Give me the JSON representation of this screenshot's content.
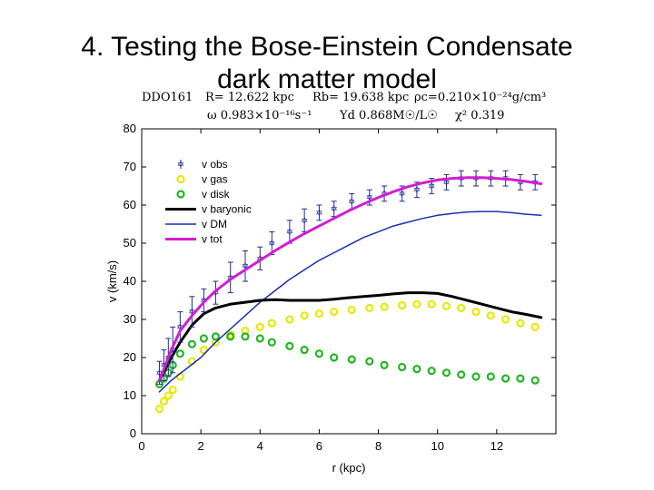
{
  "slide": {
    "title_line1": "4. Testing the Bose-Einstein Condensate",
    "title_line2": "dark matter model"
  },
  "params": {
    "galaxy": "DDO161",
    "R": "R= 12.622 kpc",
    "Rb": "Rb= 19.638 kpc",
    "rho": "ρc=0.210×10⁻²⁴g/cm³",
    "omega": "ω  0.983×10⁻¹⁶s⁻¹",
    "upsilon": "Υd  0.868M☉/L☉",
    "chi2": "χ²  0.319"
  },
  "colors": {
    "obs": "#1f2a9c",
    "gas": "#e8e800",
    "disk": "#22b522",
    "baryonic": "#000000",
    "dm": "#1a2fb0",
    "tot": "#d21ed2"
  },
  "chart_data": {
    "type": "scatter",
    "xlabel": "r (kpc)",
    "ylabel": "v (km/s)",
    "xlim": [
      0,
      14
    ],
    "ylim": [
      0,
      80
    ],
    "xticks": [
      0,
      2,
      4,
      6,
      8,
      10,
      12
    ],
    "yticks": [
      0,
      10,
      20,
      30,
      40,
      50,
      60,
      70,
      80
    ],
    "legend_position": "top-left",
    "legend": [
      "v obs",
      "v gas",
      "v disk",
      "v baryonic",
      "v DM",
      "v tot"
    ],
    "series": [
      {
        "name": "v obs",
        "kind": "errorbar",
        "x": [
          0.6,
          0.75,
          0.9,
          1.05,
          1.3,
          1.7,
          2.1,
          2.5,
          3.0,
          3.5,
          4.0,
          4.4,
          5.0,
          5.5,
          6.0,
          6.5,
          7.1,
          7.7,
          8.2,
          8.8,
          9.3,
          9.8,
          10.3,
          10.8,
          11.3,
          11.8,
          12.3,
          12.8,
          13.3
        ],
        "y": [
          16,
          18,
          20,
          22,
          28,
          32,
          35,
          37,
          41,
          44,
          46,
          50,
          53,
          56,
          58,
          59,
          61,
          62,
          63,
          63,
          64,
          65,
          66,
          67,
          67,
          67,
          67,
          66,
          66
        ],
        "err": [
          3,
          4,
          5,
          6,
          4,
          4,
          3,
          3,
          4,
          4,
          3,
          3,
          3,
          3,
          2,
          2,
          2,
          2,
          2,
          2,
          2,
          2,
          2,
          2,
          2,
          2,
          2,
          2,
          2
        ]
      },
      {
        "name": "v gas",
        "kind": "markers",
        "x": [
          0.6,
          0.75,
          0.9,
          1.05,
          1.3,
          1.7,
          2.1,
          2.5,
          3.0,
          3.5,
          4.0,
          4.4,
          5.0,
          5.5,
          6.0,
          6.5,
          7.1,
          7.7,
          8.2,
          8.8,
          9.3,
          9.8,
          10.3,
          10.8,
          11.3,
          11.8,
          12.3,
          12.8,
          13.3
        ],
        "y": [
          6.5,
          8.5,
          10,
          11.5,
          15,
          19,
          22,
          24,
          26,
          27,
          28,
          29,
          30,
          31,
          31.5,
          32,
          32.5,
          33,
          33.3,
          33.7,
          34,
          34,
          33.5,
          33,
          32,
          31,
          30,
          29,
          28
        ]
      },
      {
        "name": "v disk",
        "kind": "markers",
        "x": [
          0.6,
          0.75,
          0.9,
          1.05,
          1.3,
          1.7,
          2.1,
          2.5,
          3.0,
          3.5,
          4.0,
          4.4,
          5.0,
          5.5,
          6.0,
          6.5,
          7.1,
          7.7,
          8.2,
          8.8,
          9.3,
          9.8,
          10.3,
          10.8,
          11.3,
          11.8,
          12.3,
          12.8,
          13.3
        ],
        "y": [
          13,
          14.5,
          16,
          18,
          21,
          23.5,
          25,
          25.5,
          25.5,
          25.5,
          25,
          24,
          23,
          22,
          21,
          20,
          19.5,
          19,
          18,
          17.5,
          17,
          16.5,
          16,
          15.5,
          15,
          15,
          14.5,
          14.5,
          14
        ]
      },
      {
        "name": "v baryonic",
        "kind": "line",
        "x": [
          0.6,
          0.8,
          1.0,
          1.3,
          1.7,
          2.1,
          2.5,
          3.0,
          3.5,
          4.0,
          4.5,
          5.0,
          5.5,
          6.0,
          6.5,
          7.0,
          7.5,
          8.0,
          8.5,
          9.0,
          9.5,
          10.0,
          10.5,
          11.0,
          11.5,
          12.0,
          12.5,
          13.0,
          13.5
        ],
        "y": [
          14,
          17,
          20,
          24,
          28.5,
          31.5,
          33,
          34,
          34.5,
          35,
          35.2,
          35,
          35,
          35,
          35.3,
          35.7,
          36,
          36.3,
          36.7,
          37,
          37,
          36.8,
          36,
          35,
          34,
          33,
          32,
          31.3,
          30.5
        ]
      },
      {
        "name": "v DM",
        "kind": "line",
        "x": [
          0.6,
          1.0,
          1.5,
          2.0,
          2.5,
          3.0,
          3.5,
          4.0,
          4.5,
          5.0,
          5.5,
          6.0,
          6.5,
          7.0,
          7.5,
          8.0,
          8.5,
          9.0,
          9.5,
          10.0,
          10.5,
          11.0,
          11.5,
          12.0,
          12.5,
          13.0,
          13.5
        ],
        "y": [
          11,
          14,
          17,
          20,
          24,
          27.5,
          31,
          34.5,
          37.5,
          40.5,
          43,
          45.5,
          47.5,
          49.5,
          51.5,
          53,
          54.5,
          55.5,
          56.5,
          57.3,
          57.8,
          58.2,
          58.3,
          58.3,
          58,
          57.6,
          57.3
        ]
      },
      {
        "name": "v tot",
        "kind": "line",
        "x": [
          0.6,
          0.8,
          1.0,
          1.3,
          1.7,
          2.1,
          2.5,
          3.0,
          3.5,
          4.0,
          4.5,
          5.0,
          5.5,
          6.0,
          6.5,
          7.0,
          7.5,
          8.0,
          8.5,
          9.0,
          9.5,
          10.0,
          10.5,
          11.0,
          11.5,
          12.0,
          12.5,
          13.0,
          13.5
        ],
        "y": [
          14,
          18,
          22,
          27,
          31,
          34.5,
          37.5,
          40.5,
          43,
          45.5,
          48,
          50.3,
          52.5,
          54.5,
          56.5,
          58.5,
          60.3,
          62,
          63.5,
          64.8,
          65.8,
          66.6,
          67,
          67.2,
          67.2,
          67,
          66.7,
          66.2,
          65.6
        ]
      }
    ]
  }
}
